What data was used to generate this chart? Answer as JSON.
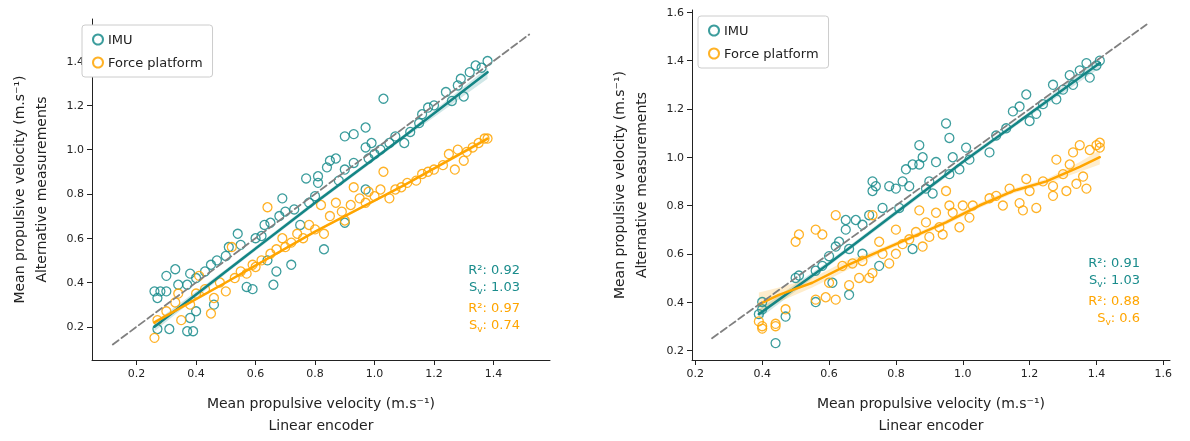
{
  "chart_data": [
    {
      "type": "scatter",
      "xlabel": "Mean propulsive velocity (m.s⁻¹)\nLinear encoder",
      "ylabel": "Mean propulsive velocity (m.s⁻¹)\nAlternative measurements",
      "xlim": [
        0.05,
        1.59
      ],
      "ylim": [
        0.05,
        1.59
      ],
      "xticks": [
        0.2,
        0.4,
        0.6,
        0.8,
        {
          "value": 1.0,
          "label": "1.0"
        },
        1.2,
        1.4
      ],
      "yticks": [
        0.2,
        0.4,
        0.6,
        0.8,
        {
          "value": 1.0,
          "label": "1.0"
        },
        1.2,
        1.4
      ],
      "grid": false,
      "legend": "top left",
      "marker": "circle",
      "annotations": [
        "R²: 0.92",
        "S$_{v}$: 1.03",
        "R²: 0.97",
        "S$_{v}$: 0.74"
      ],
      "series": [
        {
          "name": "IMU",
          "color": "#1a8c8c",
          "x": [
            0.26,
            0.27,
            0.28,
            0.3,
            0.3,
            0.33,
            0.34,
            0.37,
            0.38,
            0.27,
            0.31,
            0.37,
            0.39,
            0.38,
            0.4,
            0.4,
            0.43,
            0.45,
            0.47,
            0.5,
            0.51,
            0.54,
            0.55,
            0.57,
            0.59,
            0.6,
            0.62,
            0.63,
            0.65,
            0.66,
            0.67,
            0.68,
            0.69,
            0.7,
            0.72,
            0.73,
            0.75,
            0.77,
            0.78,
            0.8,
            0.81,
            0.81,
            0.83,
            0.84,
            0.85,
            0.87,
            0.88,
            0.9,
            0.9,
            0.93,
            0.93,
            0.97,
            0.97,
            0.98,
            0.99,
            1.0,
            1.02,
            1.03,
            1.05,
            1.07,
            1.1,
            1.12,
            1.15,
            1.16,
            1.18,
            1.2,
            1.24,
            1.26,
            1.28,
            1.29,
            1.3,
            1.32,
            1.34,
            1.36,
            1.38,
            0.97,
            0.9,
            0.64,
            0.46
          ],
          "values": [
            0.36,
            0.33,
            0.36,
            0.36,
            0.43,
            0.46,
            0.39,
            0.39,
            0.44,
            0.19,
            0.19,
            0.18,
            0.18,
            0.24,
            0.27,
            0.42,
            0.45,
            0.48,
            0.5,
            0.52,
            0.56,
            0.62,
            0.57,
            0.38,
            0.37,
            0.6,
            0.61,
            0.66,
            0.67,
            0.39,
            0.45,
            0.7,
            0.78,
            0.72,
            0.48,
            0.73,
            0.66,
            0.87,
            0.76,
            0.79,
            0.88,
            0.85,
            0.55,
            0.92,
            0.95,
            0.96,
            0.86,
            1.06,
            0.91,
            1.07,
            0.94,
            1.1,
            1.01,
            0.96,
            1.03,
            0.98,
            1.0,
            1.23,
            1.03,
            1.06,
            1.03,
            1.08,
            1.12,
            1.16,
            1.19,
            1.2,
            1.26,
            1.22,
            1.29,
            1.32,
            1.24,
            1.35,
            1.38,
            1.37,
            1.4,
            0.82,
            0.67,
            0.5,
            0.3
          ]
        },
        {
          "name": "Force platform",
          "color": "#ffa500",
          "x": [
            0.26,
            0.27,
            0.3,
            0.33,
            0.34,
            0.35,
            0.38,
            0.4,
            0.41,
            0.43,
            0.45,
            0.46,
            0.48,
            0.5,
            0.52,
            0.53,
            0.55,
            0.57,
            0.59,
            0.6,
            0.62,
            0.64,
            0.65,
            0.67,
            0.69,
            0.7,
            0.72,
            0.74,
            0.76,
            0.78,
            0.8,
            0.82,
            0.83,
            0.85,
            0.87,
            0.89,
            0.9,
            0.92,
            0.93,
            0.95,
            0.97,
            0.98,
            1.0,
            1.02,
            1.03,
            1.05,
            1.07,
            1.09,
            1.11,
            1.14,
            1.16,
            1.18,
            1.2,
            1.23,
            1.25,
            1.27,
            1.28,
            1.3,
            1.31,
            1.33,
            1.35,
            1.37,
            1.38
          ],
          "values": [
            0.15,
            0.23,
            0.27,
            0.31,
            0.35,
            0.23,
            0.3,
            0.35,
            0.43,
            0.37,
            0.26,
            0.33,
            0.4,
            0.36,
            0.56,
            0.42,
            0.45,
            0.44,
            0.48,
            0.47,
            0.5,
            0.74,
            0.53,
            0.55,
            0.6,
            0.56,
            0.58,
            0.62,
            0.6,
            0.66,
            0.64,
            0.75,
            0.62,
            0.7,
            0.76,
            0.72,
            0.68,
            0.75,
            0.83,
            0.78,
            0.76,
            0.81,
            0.79,
            0.82,
            0.9,
            0.78,
            0.82,
            0.83,
            0.85,
            0.86,
            0.89,
            0.9,
            0.91,
            0.93,
            0.98,
            0.91,
            1.0,
            0.95,
            0.99,
            1.01,
            1.03,
            1.05,
            1.05
          ]
        },
        {
          "type": "line",
          "marker": "none",
          "color": "#148585",
          "x": [
            0.26,
            0.5,
            0.8,
            1.1,
            1.38
          ],
          "values": [
            0.2,
            0.45,
            0.76,
            1.06,
            1.35
          ],
          "lower": [
            0.18,
            0.44,
            0.75,
            1.05,
            1.32
          ],
          "upper": [
            0.22,
            0.46,
            0.77,
            1.07,
            1.37
          ]
        },
        {
          "type": "line",
          "marker": "none",
          "color": "#ffa500",
          "x": [
            0.26,
            0.5,
            0.8,
            1.1,
            1.38
          ],
          "values": [
            0.22,
            0.4,
            0.63,
            0.84,
            1.05
          ],
          "lower": [
            0.21,
            0.395,
            0.625,
            0.835,
            1.04
          ],
          "upper": [
            0.23,
            0.405,
            0.635,
            0.845,
            1.06
          ]
        },
        {
          "type": "line",
          "color": "#808080",
          "line_style": "dashed",
          "marker": "none",
          "x": [
            0.12,
            1.52
          ],
          "values": [
            0.12,
            1.52
          ]
        }
      ]
    },
    {
      "type": "scatter",
      "xlabel": "Mean propulsive velocity (m.s⁻¹)\nLinear encoder",
      "ylabel": "Mean propulsive velocity (m.s⁻¹)\nAlternative measurements",
      "xlim": [
        0.19,
        1.62
      ],
      "ylim": [
        0.16,
        1.61
      ],
      "xticks": [
        0.2,
        0.4,
        0.6,
        0.8,
        {
          "value": 1.0,
          "label": "1.0"
        },
        1.2,
        1.4,
        1.6
      ],
      "yticks": [
        0.2,
        0.4,
        0.6,
        0.8,
        {
          "value": 1.0,
          "label": "1.0"
        },
        1.2,
        1.4,
        1.6
      ],
      "grid": false,
      "legend": "top left",
      "marker": "circle",
      "annotations": [
        "R²: 0.91",
        "S$_{v}$: 1.03",
        "R²: 0.88",
        "S$_{v}$: 0.6"
      ],
      "series": [
        {
          "name": "IMU",
          "color": "#1a8c8c",
          "x": [
            0.39,
            0.4,
            0.4,
            0.44,
            0.47,
            0.5,
            0.51,
            0.56,
            0.56,
            0.58,
            0.6,
            0.61,
            0.62,
            0.63,
            0.65,
            0.65,
            0.66,
            0.66,
            0.68,
            0.7,
            0.7,
            0.72,
            0.73,
            0.73,
            0.74,
            0.75,
            0.76,
            0.78,
            0.8,
            0.81,
            0.82,
            0.83,
            0.84,
            0.85,
            0.85,
            0.87,
            0.87,
            0.88,
            0.89,
            0.9,
            0.91,
            0.92,
            0.95,
            0.96,
            0.96,
            0.97,
            0.99,
            1.01,
            1.02,
            1.08,
            1.1,
            1.13,
            1.15,
            1.17,
            1.19,
            1.2,
            1.22,
            1.24,
            1.27,
            1.28,
            1.3,
            1.32,
            1.33,
            1.35,
            1.37,
            1.38,
            1.4,
            1.41
          ],
          "values": [
            0.35,
            0.4,
            0.37,
            0.23,
            0.34,
            0.5,
            0.51,
            0.53,
            0.4,
            0.55,
            0.59,
            0.48,
            0.63,
            0.65,
            0.74,
            0.7,
            0.43,
            0.62,
            0.74,
            0.72,
            0.6,
            0.76,
            0.9,
            0.86,
            0.88,
            0.55,
            0.79,
            0.88,
            0.87,
            0.79,
            0.9,
            0.95,
            0.88,
            0.62,
            0.97,
            1.05,
            0.97,
            1.0,
            0.87,
            0.9,
            0.85,
            0.98,
            1.14,
            1.08,
            0.93,
            1.0,
            0.95,
            1.04,
            0.99,
            1.02,
            1.09,
            1.12,
            1.19,
            1.21,
            1.26,
            1.15,
            1.18,
            1.22,
            1.3,
            1.24,
            1.28,
            1.34,
            1.3,
            1.36,
            1.39,
            1.33,
            1.38,
            1.4
          ]
        },
        {
          "name": "Force platform",
          "color": "#ffa500",
          "x": [
            0.39,
            0.4,
            0.4,
            0.44,
            0.44,
            0.47,
            0.5,
            0.51,
            0.56,
            0.56,
            0.58,
            0.59,
            0.6,
            0.62,
            0.62,
            0.64,
            0.66,
            0.67,
            0.69,
            0.7,
            0.72,
            0.73,
            0.73,
            0.75,
            0.76,
            0.78,
            0.8,
            0.8,
            0.82,
            0.84,
            0.86,
            0.87,
            0.88,
            0.89,
            0.9,
            0.92,
            0.93,
            0.94,
            0.95,
            0.96,
            0.97,
            0.99,
            1.0,
            1.02,
            1.03,
            1.08,
            1.1,
            1.12,
            1.14,
            1.17,
            1.18,
            1.19,
            1.2,
            1.22,
            1.24,
            1.27,
            1.27,
            1.28,
            1.3,
            1.31,
            1.32,
            1.33,
            1.34,
            1.35,
            1.36,
            1.37,
            1.38,
            1.4,
            1.41,
            1.41
          ],
          "values": [
            0.32,
            0.29,
            0.3,
            0.31,
            0.3,
            0.37,
            0.65,
            0.68,
            0.7,
            0.41,
            0.68,
            0.42,
            0.48,
            0.76,
            0.41,
            0.55,
            0.47,
            0.56,
            0.5,
            0.57,
            0.5,
            0.52,
            0.76,
            0.65,
            0.6,
            0.56,
            0.7,
            0.6,
            0.64,
            0.66,
            0.69,
            0.78,
            0.63,
            0.73,
            0.67,
            0.77,
            0.71,
            0.68,
            0.86,
            0.8,
            0.77,
            0.71,
            0.8,
            0.75,
            0.8,
            0.83,
            0.84,
            0.8,
            0.87,
            0.81,
            0.78,
            0.91,
            0.86,
            0.79,
            0.9,
            0.88,
            0.84,
            0.99,
            0.93,
            0.86,
            0.97,
            1.02,
            0.89,
            1.05,
            0.92,
            0.87,
            1.03,
            1.05,
            1.06,
            1.04
          ]
        },
        {
          "type": "line",
          "marker": "none",
          "color": "#148585",
          "x": [
            0.39,
            0.6,
            0.8,
            1.0,
            1.2,
            1.41
          ],
          "values": [
            0.35,
            0.56,
            0.77,
            0.98,
            1.18,
            1.39
          ],
          "lower": [
            0.33,
            0.55,
            0.76,
            0.97,
            1.17,
            1.37
          ],
          "upper": [
            0.37,
            0.57,
            0.78,
            0.99,
            1.19,
            1.41
          ]
        },
        {
          "type": "line",
          "marker": "none",
          "color": "#ffa500",
          "x": [
            0.39,
            0.45,
            0.55,
            0.65,
            0.75,
            0.85,
            0.95,
            1.05,
            1.15,
            1.25,
            1.35,
            1.41
          ],
          "values": [
            0.39,
            0.43,
            0.48,
            0.55,
            0.61,
            0.67,
            0.73,
            0.8,
            0.86,
            0.9,
            0.96,
            1.0
          ],
          "lower": [
            0.35,
            0.4,
            0.46,
            0.53,
            0.6,
            0.66,
            0.72,
            0.79,
            0.85,
            0.89,
            0.94,
            0.97
          ],
          "upper": [
            0.44,
            0.46,
            0.5,
            0.57,
            0.62,
            0.68,
            0.74,
            0.81,
            0.87,
            0.91,
            0.98,
            1.03
          ]
        },
        {
          "type": "line",
          "color": "#808080",
          "line_style": "dashed",
          "marker": "none",
          "x": [
            0.25,
            1.55
          ],
          "values": [
            0.25,
            1.55
          ]
        }
      ]
    }
  ]
}
